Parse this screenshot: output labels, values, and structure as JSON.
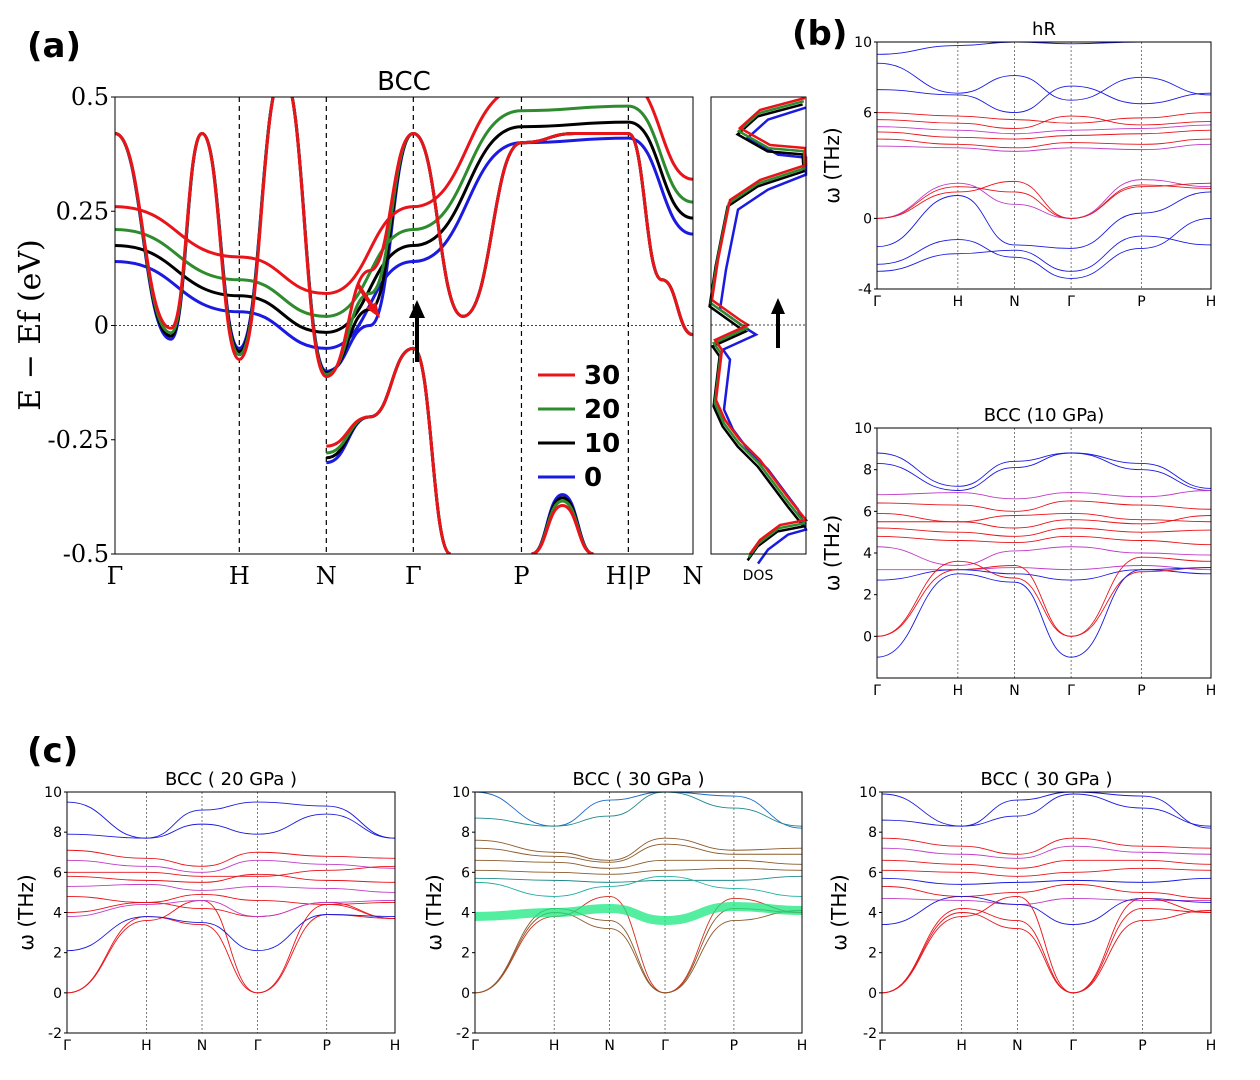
{
  "labels": {
    "a": "(a)",
    "b": "(b)",
    "c": "(c)"
  },
  "chart_data": [
    {
      "id": "band",
      "type": "line",
      "title": "BCC",
      "ylabel": "E − Ef (eV)",
      "ylim": [
        -0.5,
        0.5
      ],
      "yticks": [
        "0.5",
        "0.25",
        "0",
        "-0.25",
        "-0.5"
      ],
      "ytick_values": [
        0.5,
        0.25,
        0,
        -0.25,
        -0.5
      ],
      "xticks": [
        "Γ",
        "H",
        "N",
        "Γ",
        "P",
        "H|P",
        "N"
      ],
      "xtick_positions": [
        0,
        1.0,
        1.7,
        2.4,
        3.27,
        4.13,
        4.65
      ],
      "fermi_level": 0,
      "legend": {
        "placement": "lower-right",
        "entries": [
          {
            "label": "30",
            "color": "#e8141a"
          },
          {
            "label": "20",
            "color": "#2e8b2e"
          },
          {
            "label": "10",
            "color": "#000000"
          },
          {
            "label": "0",
            "color": "#1a1ae0"
          }
        ]
      },
      "annotations": [
        "red arrow near N–Γ at E≈0",
        "black arrow at Γ pointing up"
      ],
      "band_series": {
        "path": [
          0,
          1.0,
          1.7,
          2.4,
          3.27,
          4.13,
          4.65
        ],
        "upper": [
          0.14,
          0.03,
          -0.05,
          0.14,
          0.4,
          0.41,
          0.2
        ],
        "lower": [
          -0.5,
          -0.5,
          -0.2,
          -0.5,
          -0.5,
          -0.5,
          -0.5
        ],
        "offsets": {
          "30": 0.12,
          "20": 0.07,
          "10": 0.035,
          "0": 0
        }
      },
      "dos": {
        "xlabel": "DOS"
      }
    },
    {
      "id": "hR",
      "type": "line",
      "title": "hR",
      "ylabel": "ω (THz)",
      "ylim": [
        -4,
        10
      ],
      "yticks": [
        "10",
        "6",
        "0",
        "-4"
      ],
      "ytick_values": [
        10,
        6,
        0,
        -4
      ],
      "xticks": [
        "Γ",
        "H",
        "N",
        "Γ",
        "P",
        "H"
      ]
    },
    {
      "id": "bcc10",
      "type": "line",
      "title": "BCC (10 GPa)",
      "ylabel": "ω (THz)",
      "ylim": [
        -2,
        10
      ],
      "yticks": [
        "10",
        "8",
        "6",
        "4",
        "2",
        "0"
      ],
      "ytick_values": [
        10,
        8,
        6,
        4,
        2,
        0
      ],
      "xticks": [
        "Γ",
        "H",
        "N",
        "Γ",
        "P",
        "H"
      ]
    },
    {
      "id": "bcc20",
      "type": "line",
      "title": "BCC ( 20 GPa )",
      "ylabel": "ω (THz)",
      "ylim": [
        -2,
        10
      ],
      "yticks": [
        "10",
        "8",
        "6",
        "4",
        "2",
        "0",
        "-2"
      ],
      "ytick_values": [
        10,
        8,
        6,
        4,
        2,
        0,
        -2
      ],
      "xticks": [
        "Γ",
        "H",
        "N",
        "Γ",
        "P",
        "H"
      ]
    },
    {
      "id": "bcc30a",
      "type": "line",
      "title": "BCC ( 30 GPa )",
      "ylabel": "ω (THz)",
      "ylim": [
        -2,
        10
      ],
      "yticks": [
        "10",
        "8",
        "6",
        "4",
        "2",
        "0",
        "-2"
      ],
      "ytick_values": [
        10,
        8,
        6,
        4,
        2,
        0,
        -2
      ],
      "xticks": [
        "Γ",
        "H",
        "N",
        "Γ",
        "P",
        "H"
      ]
    },
    {
      "id": "bcc30b",
      "type": "line",
      "title": "BCC ( 30 GPa )",
      "ylabel": "ω (THz)",
      "ylim": [
        -2,
        10
      ],
      "yticks": [
        "10",
        "8",
        "6",
        "4",
        "2",
        "0",
        "-2"
      ],
      "ytick_values": [
        10,
        8,
        6,
        4,
        2,
        0,
        -2
      ],
      "xticks": [
        "Γ",
        "H",
        "N",
        "Γ",
        "P",
        "H"
      ]
    }
  ],
  "phonon_path": [
    0,
    1,
    1.7,
    2.4,
    3.27,
    4.13
  ]
}
